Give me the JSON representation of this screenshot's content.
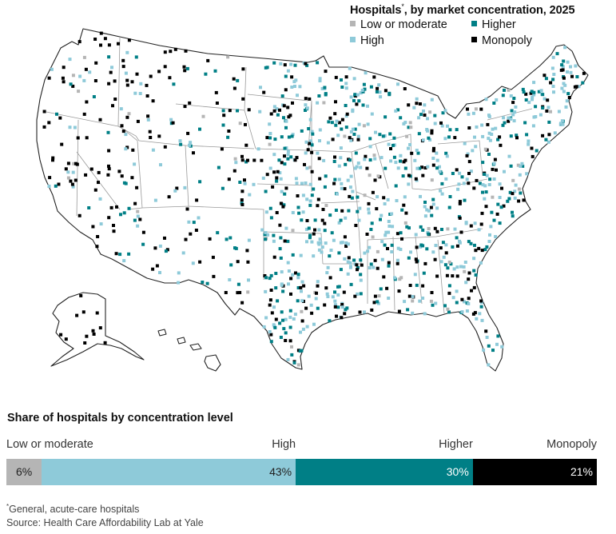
{
  "legend": {
    "title": "Hospitals",
    "title_marker": "*",
    "title_suffix": ", by market concentration, 2025",
    "items": [
      {
        "label": "Low or moderate",
        "color": "#b5b5b5"
      },
      {
        "label": "High",
        "color": "#8ecad9"
      },
      {
        "label": "Higher",
        "color": "#007f86"
      },
      {
        "label": "Monopoly",
        "color": "#000000"
      }
    ]
  },
  "share": {
    "title": "Share of hospitals by concentration level",
    "segments": [
      {
        "label": "Low or moderate",
        "value": "6%",
        "share": 6,
        "color": "#b5b5b5",
        "text_color": "#222222"
      },
      {
        "label": "High",
        "value": "43%",
        "share": 43,
        "color": "#8ecad9",
        "text_color": "#222222"
      },
      {
        "label": "Higher",
        "value": "30%",
        "share": 30,
        "color": "#007f86",
        "text_color": "#ffffff"
      },
      {
        "label": "Monopoly",
        "value": "21%",
        "share": 21,
        "color": "#000000",
        "text_color": "#ffffff"
      }
    ]
  },
  "footnote": {
    "marker": "*",
    "note": "General, acute-care hospitals",
    "source": "Source: Health Care Affordability Lab at Yale"
  }
}
